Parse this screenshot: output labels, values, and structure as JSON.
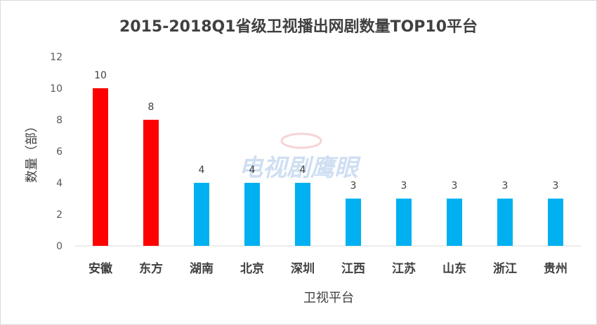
{
  "chart_data": {
    "type": "bar",
    "title": "2015-2018Q1省级卫视播出网剧数量TOP10平台",
    "xlabel": "卫视平台",
    "ylabel": "数量（部）",
    "categories": [
      "安徽",
      "东方",
      "湖南",
      "北京",
      "深圳",
      "江西",
      "江苏",
      "山东",
      "浙江",
      "贵州"
    ],
    "values": [
      10,
      8,
      4,
      4,
      4,
      3,
      3,
      3,
      3,
      3
    ],
    "colors": [
      "#ff0000",
      "#ff0000",
      "#00b0f0",
      "#00b0f0",
      "#00b0f0",
      "#00b0f0",
      "#00b0f0",
      "#00b0f0",
      "#00b0f0",
      "#00b0f0"
    ],
    "ylim": [
      0,
      12
    ],
    "yticks": [
      0,
      2,
      4,
      6,
      8,
      10,
      12
    ],
    "grid": false,
    "legend": "none",
    "data_labels": true
  },
  "watermark": "电视剧鹰眼"
}
